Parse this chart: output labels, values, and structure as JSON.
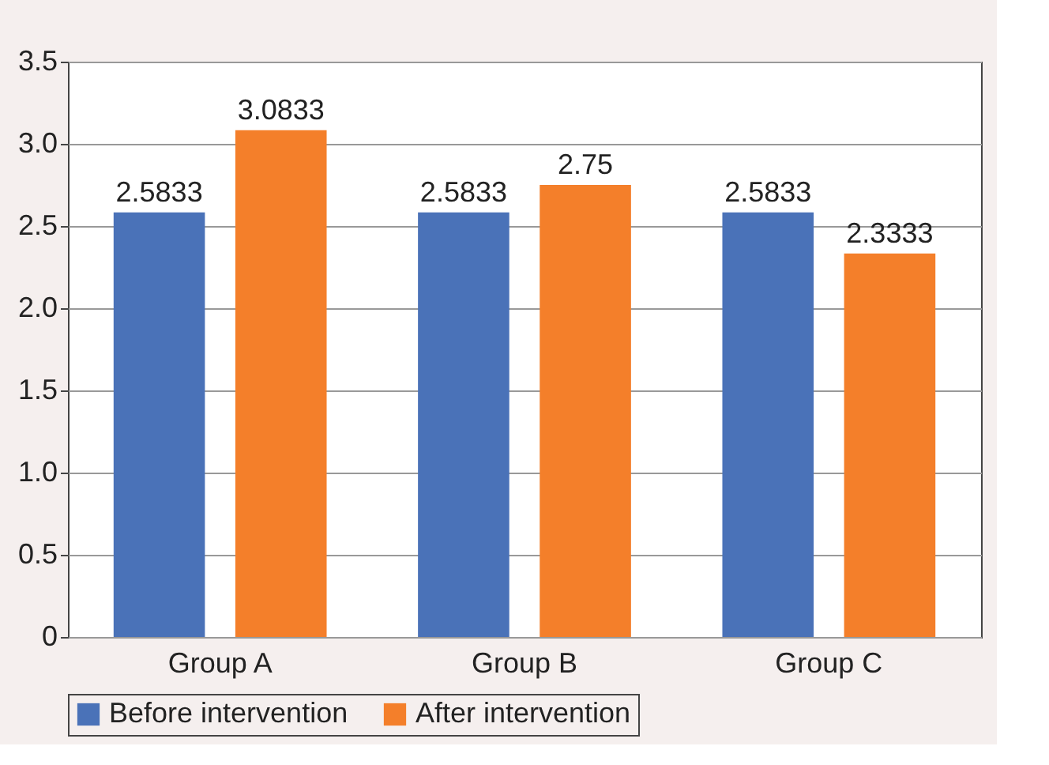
{
  "chart_data": {
    "type": "bar",
    "categories": [
      "Group A",
      "Group B",
      "Group C"
    ],
    "series": [
      {
        "name": "Before intervention",
        "color": "#4a72b8",
        "values": [
          2.5833,
          2.5833,
          2.5833
        ]
      },
      {
        "name": "After intervention",
        "color": "#f47f2a",
        "values": [
          3.0833,
          2.75,
          2.3333
        ]
      }
    ],
    "ylim": [
      0,
      3.5
    ],
    "yticks": [
      0,
      0.5,
      {
        "value": 1,
        "label": "1.0"
      },
      1.5,
      {
        "value": 2,
        "label": "2.0"
      },
      2.5,
      {
        "value": 3,
        "label": "3.0"
      },
      3.5
    ],
    "grid": "y",
    "legend": "bottom",
    "data_labels": true
  }
}
